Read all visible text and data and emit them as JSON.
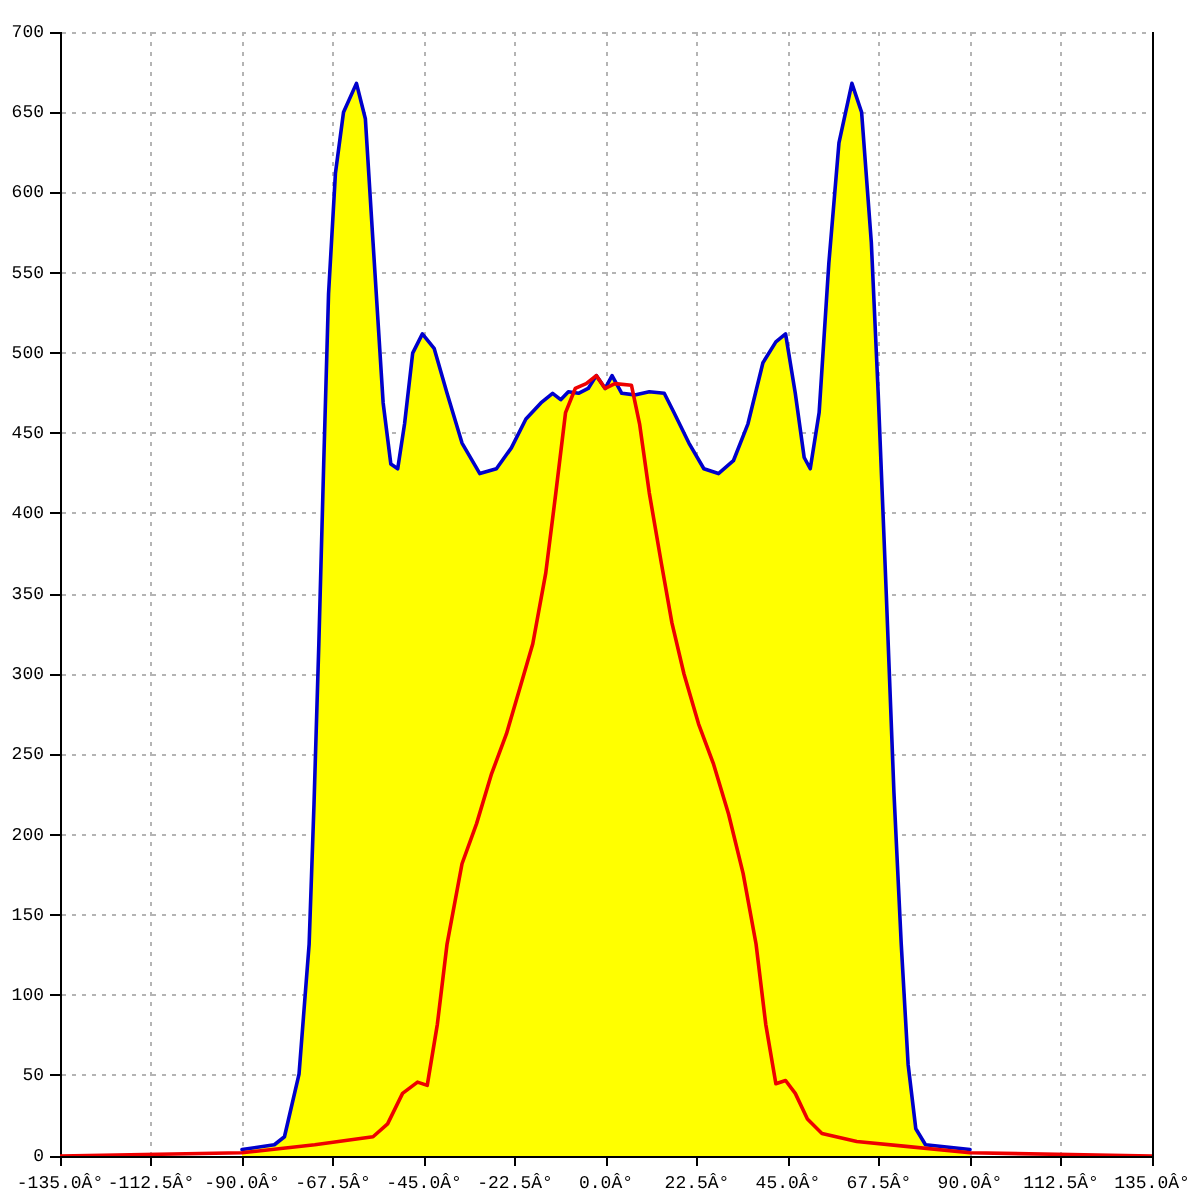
{
  "chart_data": {
    "type": "area",
    "xlim": [
      -135,
      135
    ],
    "xticks": [
      {
        "value": -135,
        "label": "-135.0Â°"
      },
      {
        "value": -112.5,
        "label": "-112.5Â°"
      },
      {
        "value": -90,
        "label": "-90.0Â°"
      },
      {
        "value": -67.5,
        "label": "-67.5Â°"
      },
      {
        "value": -45,
        "label": "-45.0Â°"
      },
      {
        "value": -22.5,
        "label": "-22.5Â°"
      },
      {
        "value": 0,
        "label": "0.0Â°"
      },
      {
        "value": 22.5,
        "label": "22.5Â°"
      },
      {
        "value": 45,
        "label": "45.0Â°"
      },
      {
        "value": 67.5,
        "label": "67.5Â°"
      },
      {
        "value": 90,
        "label": "90.0Â°"
      },
      {
        "value": 112.5,
        "label": "112.5Â°"
      },
      {
        "value": 135,
        "label": "135.0Â°"
      }
    ],
    "ylim": [
      0,
      700
    ],
    "yticks": [
      0,
      50,
      100,
      150,
      200,
      250,
      300,
      350,
      400,
      450,
      500,
      550,
      600,
      650,
      700
    ],
    "grid": true,
    "series": [
      {
        "color": "#ffff00",
        "x": [
          -90,
          -82,
          -79.5,
          -75.9,
          -73.4,
          -72.2,
          -71,
          -69.8,
          -68.6,
          -66.9,
          -64.9,
          -61.7,
          -59.5,
          -57.6,
          -55.1,
          -53.2,
          -51.5,
          -49.8,
          -47.8,
          -45.4,
          -42.5,
          -39.3,
          -35.6,
          -31.2,
          -27.1,
          -23.4,
          -19.8,
          -16.1,
          -13.2,
          -11.2,
          -9.3,
          -6.8,
          -4.4,
          -2.4,
          -0.2,
          1.5,
          3.9,
          7.1,
          10.7,
          14.4,
          16.8,
          20.5,
          24.2,
          27.8,
          31.5,
          35.1,
          38.8,
          42,
          44.4,
          46.8,
          49,
          50.5,
          52.7,
          55.1,
          57.6,
          60.8,
          63.2,
          65.6,
          67.3,
          69.3,
          71.2,
          73,
          74.7,
          76.6,
          79,
          90
        ],
        "values": [
          4,
          7,
          12,
          51,
          132,
          219,
          319,
          431,
          537,
          612,
          650,
          668,
          646,
          569,
          469,
          431,
          428,
          456,
          500,
          512,
          503,
          475,
          444,
          425,
          428,
          441,
          459,
          469,
          475,
          471,
          476,
          475,
          478,
          486,
          478,
          486,
          475,
          474,
          476,
          475,
          463,
          444,
          428,
          425,
          433,
          456,
          494,
          507,
          512,
          475,
          435,
          428,
          463,
          556,
          631,
          668,
          650,
          569,
          475,
          350,
          226,
          132,
          57,
          17,
          7,
          4
        ]
      },
      {
        "type": "line",
        "color": "#0000cc",
        "x": [
          -90,
          -82,
          -79.5,
          -75.9,
          -73.4,
          -72.2,
          -71,
          -69.8,
          -68.6,
          -66.9,
          -64.9,
          -61.7,
          -59.5,
          -57.6,
          -55.1,
          -53.2,
          -51.5,
          -49.8,
          -47.8,
          -45.4,
          -42.5,
          -39.3,
          -35.6,
          -31.2,
          -27.1,
          -23.4,
          -19.8,
          -16.1,
          -13.2,
          -11.2,
          -9.3,
          -6.8,
          -4.4,
          -2.4,
          -0.2,
          1.5,
          3.9,
          7.1,
          10.7,
          14.4,
          16.8,
          20.5,
          24.2,
          27.8,
          31.5,
          35.1,
          38.8,
          42,
          44.4,
          46.8,
          49,
          50.5,
          52.7,
          55.1,
          57.6,
          60.8,
          63.2,
          65.6,
          67.3,
          69.3,
          71.2,
          73,
          74.7,
          76.6,
          79,
          90
        ],
        "values": [
          4,
          7,
          12,
          51,
          132,
          219,
          319,
          431,
          537,
          612,
          650,
          668,
          646,
          569,
          469,
          431,
          428,
          456,
          500,
          512,
          503,
          475,
          444,
          425,
          428,
          441,
          459,
          469,
          475,
          471,
          476,
          475,
          478,
          486,
          478,
          486,
          475,
          474,
          476,
          475,
          463,
          444,
          428,
          425,
          433,
          456,
          494,
          507,
          512,
          475,
          435,
          428,
          463,
          556,
          631,
          668,
          650,
          569,
          475,
          350,
          226,
          132,
          57,
          17,
          7,
          4
        ]
      },
      {
        "type": "line",
        "color": "#ee0000",
        "x": [
          -135,
          -90,
          -72,
          -57.6,
          -54,
          -50.3,
          -46.6,
          -44.2,
          -41.7,
          -39.3,
          -35.6,
          -32,
          -28.3,
          -24.6,
          -21,
          -18.1,
          -14.9,
          -12.4,
          -10,
          -7.6,
          -4.9,
          -2.4,
          -0.2,
          2.2,
          6.3,
          8.3,
          10.7,
          13.7,
          16.3,
          19.3,
          22.9,
          26.6,
          30.3,
          33.9,
          37.1,
          39.5,
          42,
          44.4,
          46.8,
          49.8,
          53.4,
          62,
          74.2,
          90,
          135
        ],
        "values": [
          0,
          2,
          7,
          12,
          20,
          39,
          46,
          44,
          82,
          132,
          182,
          207,
          238,
          263,
          294,
          319,
          363,
          413,
          463,
          478,
          481,
          486,
          478,
          481,
          480,
          456,
          413,
          369,
          332,
          300,
          269,
          244,
          213,
          176,
          132,
          82,
          45,
          47,
          39,
          23,
          14,
          9,
          6,
          2,
          0
        ]
      }
    ]
  }
}
